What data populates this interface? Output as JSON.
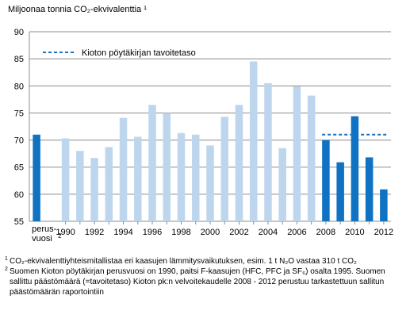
{
  "chart_data": {
    "type": "bar",
    "ylabel": "Miljoonaa tonnia CO₂-ekvivalenttia ¹",
    "ylim": [
      55,
      90
    ],
    "yticks": [
      55,
      60,
      65,
      70,
      75,
      80,
      85,
      90
    ],
    "categories": [
      "perus-vuosi 2",
      "1990",
      "1991",
      "1992",
      "1993",
      "1994",
      "1995",
      "1996",
      "1997",
      "1998",
      "1999",
      "2000",
      "2001",
      "2002",
      "2003",
      "2004",
      "2005",
      "2006",
      "2007",
      "2008",
      "2009",
      "2010",
      "2011",
      "2012"
    ],
    "x_tick_labels": [
      "1990",
      "1992",
      "1994",
      "1996",
      "1998",
      "2000",
      "2002",
      "2004",
      "2006",
      "2008",
      "2010",
      "2012"
    ],
    "base_year_label_line1": "perus-",
    "base_year_label_line2": "vuosi",
    "base_year_label_sup": "2",
    "values": [
      71.0,
      70.3,
      68.0,
      66.7,
      68.7,
      74.1,
      70.6,
      76.5,
      75.0,
      71.3,
      71.0,
      69.0,
      74.3,
      76.5,
      84.5,
      80.5,
      68.5,
      79.9,
      78.2,
      70.0,
      65.9,
      74.4,
      66.8,
      60.9
    ],
    "grid": true,
    "target_line": {
      "label": "Kioton pöytäkirjan tavoitetaso",
      "value": 71.0,
      "from_category": "2008",
      "to_category": "2012"
    },
    "colors": {
      "highlight": "#0f72c2",
      "normal": "#bdd6ee",
      "target": "#1f6fc4",
      "grid": "#8c8c8c"
    }
  },
  "footnotes": [
    {
      "marker": "1",
      "text": "CO₂-ekvivalenttiyhteismitallistaa eri kaasujen lämmitysvaikutuksen, esim. 1 t N₂O vastaa 310 t CO₂"
    },
    {
      "marker": "2",
      "text": "Suomen Kioton pöytäkirjan perusvuosi on 1990, paitsi F-kaasujen (HFC, PFC ja SF₆) osalta 1995. Suomen sallittu päästömäärä (=tavoitetaso) Kioton pk:n velvoitekaudelle 2008 - 2012 perustuu tarkastettuun sallitun päästömäärän raportointiin"
    }
  ]
}
